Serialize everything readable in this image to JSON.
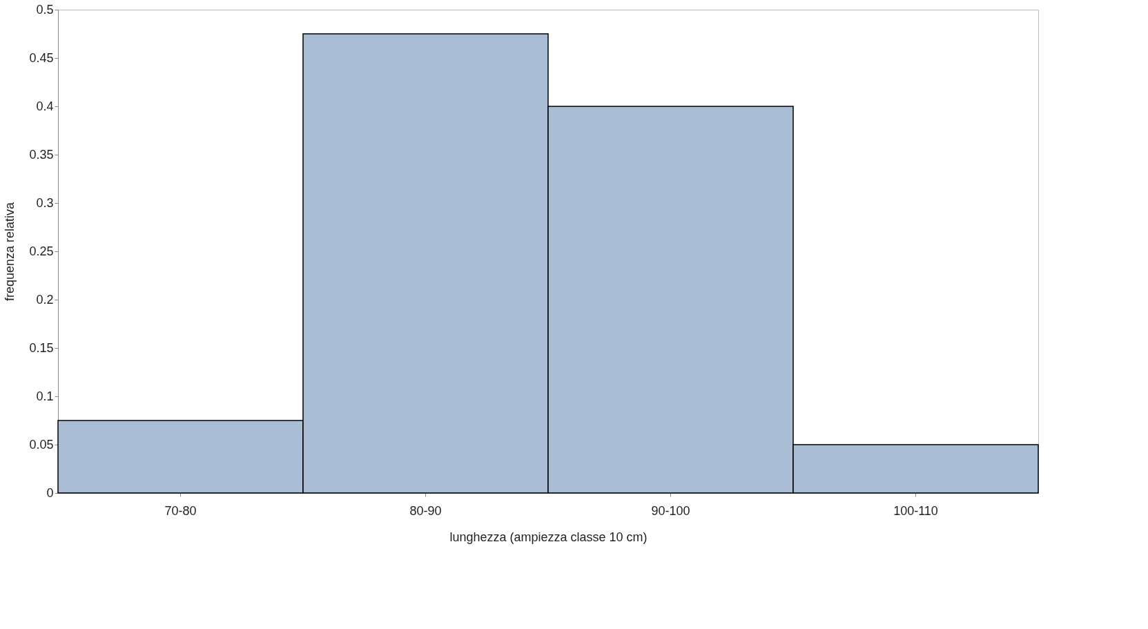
{
  "chart_data": {
    "type": "bar",
    "xlabel": "lunghezza (ampiezza classe 10 cm)",
    "ylabel": "frequenza relativa",
    "categories": [
      "70-80",
      "80-90",
      "90-100",
      "100-110"
    ],
    "values": [
      0.075,
      0.475,
      0.4,
      0.05
    ],
    "color": "#a9bdd5",
    "ylim": [
      0,
      0.5
    ],
    "yticks": [
      0,
      0.05,
      0.1,
      0.15,
      0.2,
      0.25,
      0.3,
      0.35,
      0.4,
      0.45,
      0.5
    ],
    "grid": false
  }
}
